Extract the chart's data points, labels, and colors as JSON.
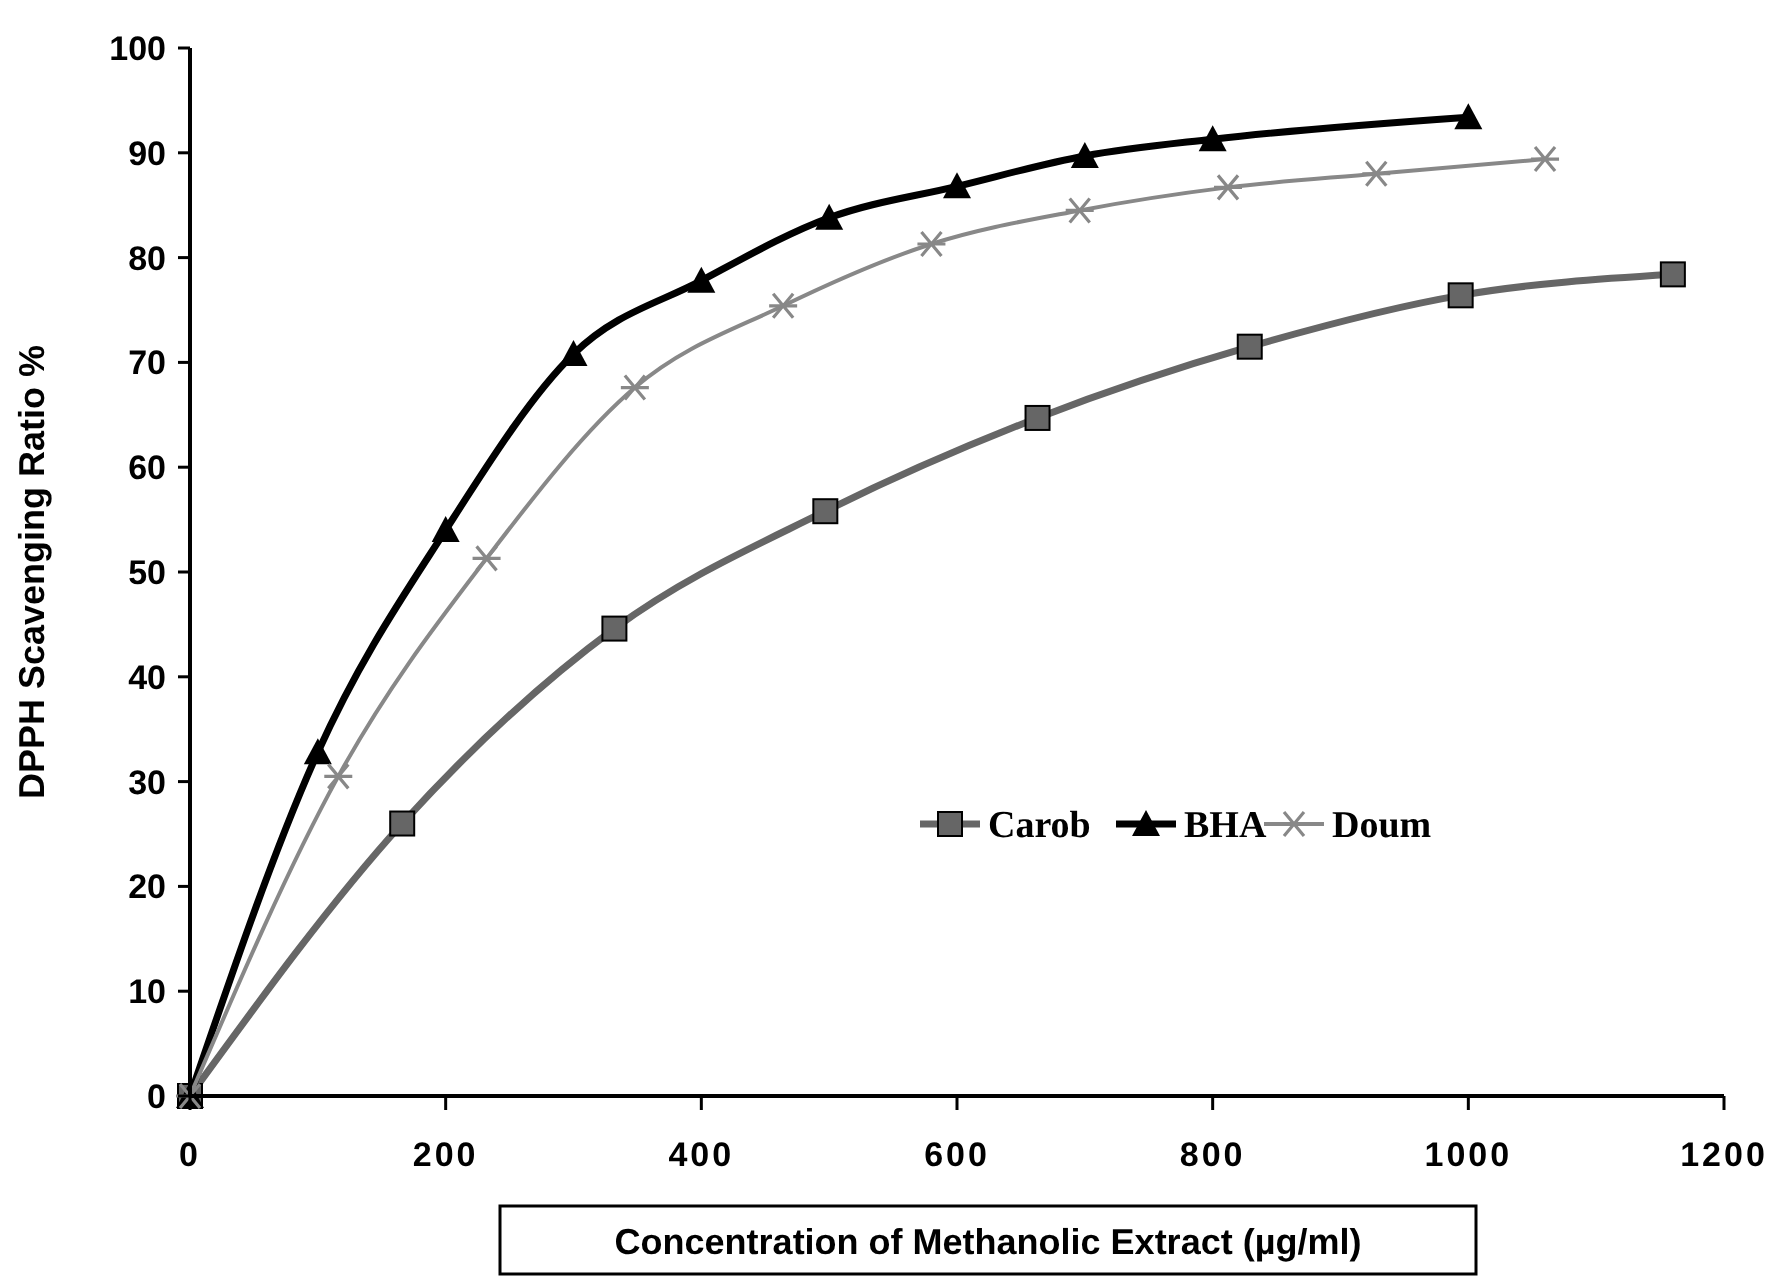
{
  "chart_data": {
    "type": "line",
    "xlabel": "Concentration of Methanolic Extract (µg/ml)",
    "ylabel": "DPPH Scavenging Ratio %",
    "xlim": [
      0,
      1200
    ],
    "xticks": [
      0,
      200,
      400,
      600,
      800,
      1000,
      1200
    ],
    "ylim": [
      0,
      100
    ],
    "yticks": [
      0,
      10,
      20,
      30,
      40,
      50,
      60,
      70,
      80,
      90,
      100
    ],
    "grid": false,
    "legend": "right",
    "series": [
      {
        "name": "Carob",
        "color": "#666666",
        "marker": "square",
        "x": [
          0,
          166,
          332,
          497,
          663,
          829,
          994,
          1160
        ],
        "values": [
          0,
          26,
          44.6,
          55.8,
          64.7,
          71.5,
          76.4,
          78.4
        ]
      },
      {
        "name": "BHA",
        "color": "#000000",
        "marker": "triangle",
        "x": [
          0,
          100,
          200,
          300,
          400,
          500,
          600,
          700,
          800,
          1000
        ],
        "values": [
          0,
          32.8,
          54,
          70.8,
          77.8,
          83.8,
          86.8,
          89.7,
          91.3,
          93.4
        ]
      },
      {
        "name": "Doum",
        "color": "#888888",
        "marker": "cross",
        "x": [
          0,
          116,
          232,
          348,
          464,
          580,
          696,
          812,
          928,
          1060
        ],
        "values": [
          0,
          30.5,
          51.3,
          67.6,
          75.4,
          81.3,
          84.5,
          86.7,
          88,
          89.4
        ]
      }
    ]
  }
}
